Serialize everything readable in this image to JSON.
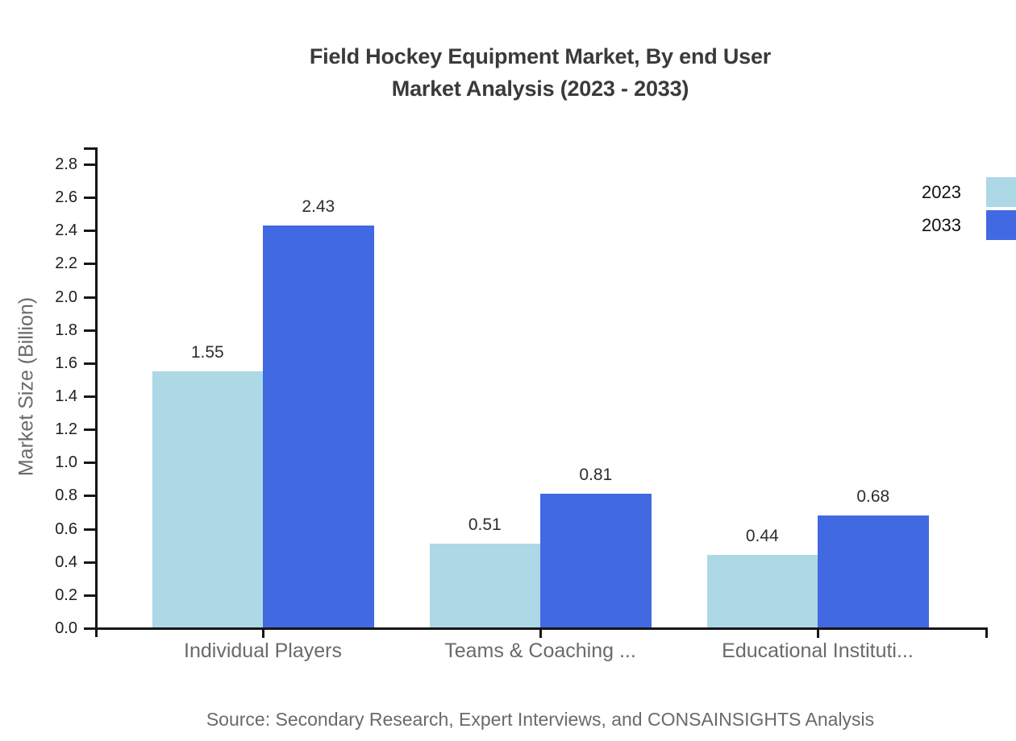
{
  "title": {
    "line1": "Field Hockey Equipment Market, By end User",
    "line2": "Market Analysis (2023 - 2033)"
  },
  "source": "Source: Secondary Research, Expert Interviews, and CONSAINSIGHTS Analysis",
  "chart_data": {
    "type": "bar",
    "title": "Field Hockey Equipment Market, By end User Market Analysis (2023 - 2033)",
    "categories": [
      "Individual Players",
      "Teams & Coaching ...",
      "Educational Instituti..."
    ],
    "series": [
      {
        "name": "2023",
        "color": "#ADD8E6",
        "values": [
          1.55,
          0.51,
          0.44
        ]
      },
      {
        "name": "2033",
        "color": "#4169E1",
        "values": [
          2.43,
          0.81,
          0.68
        ]
      }
    ],
    "xlabel": "",
    "ylabel": "Market Size (Billion)",
    "ylim": [
      0,
      2.9
    ],
    "ytick_step": 0.2,
    "ytick_max": 2.8,
    "grid": false,
    "legend_position": "top-right",
    "value_labels": true,
    "axis_color": "#161616",
    "label_color": "#6a6a6a"
  }
}
